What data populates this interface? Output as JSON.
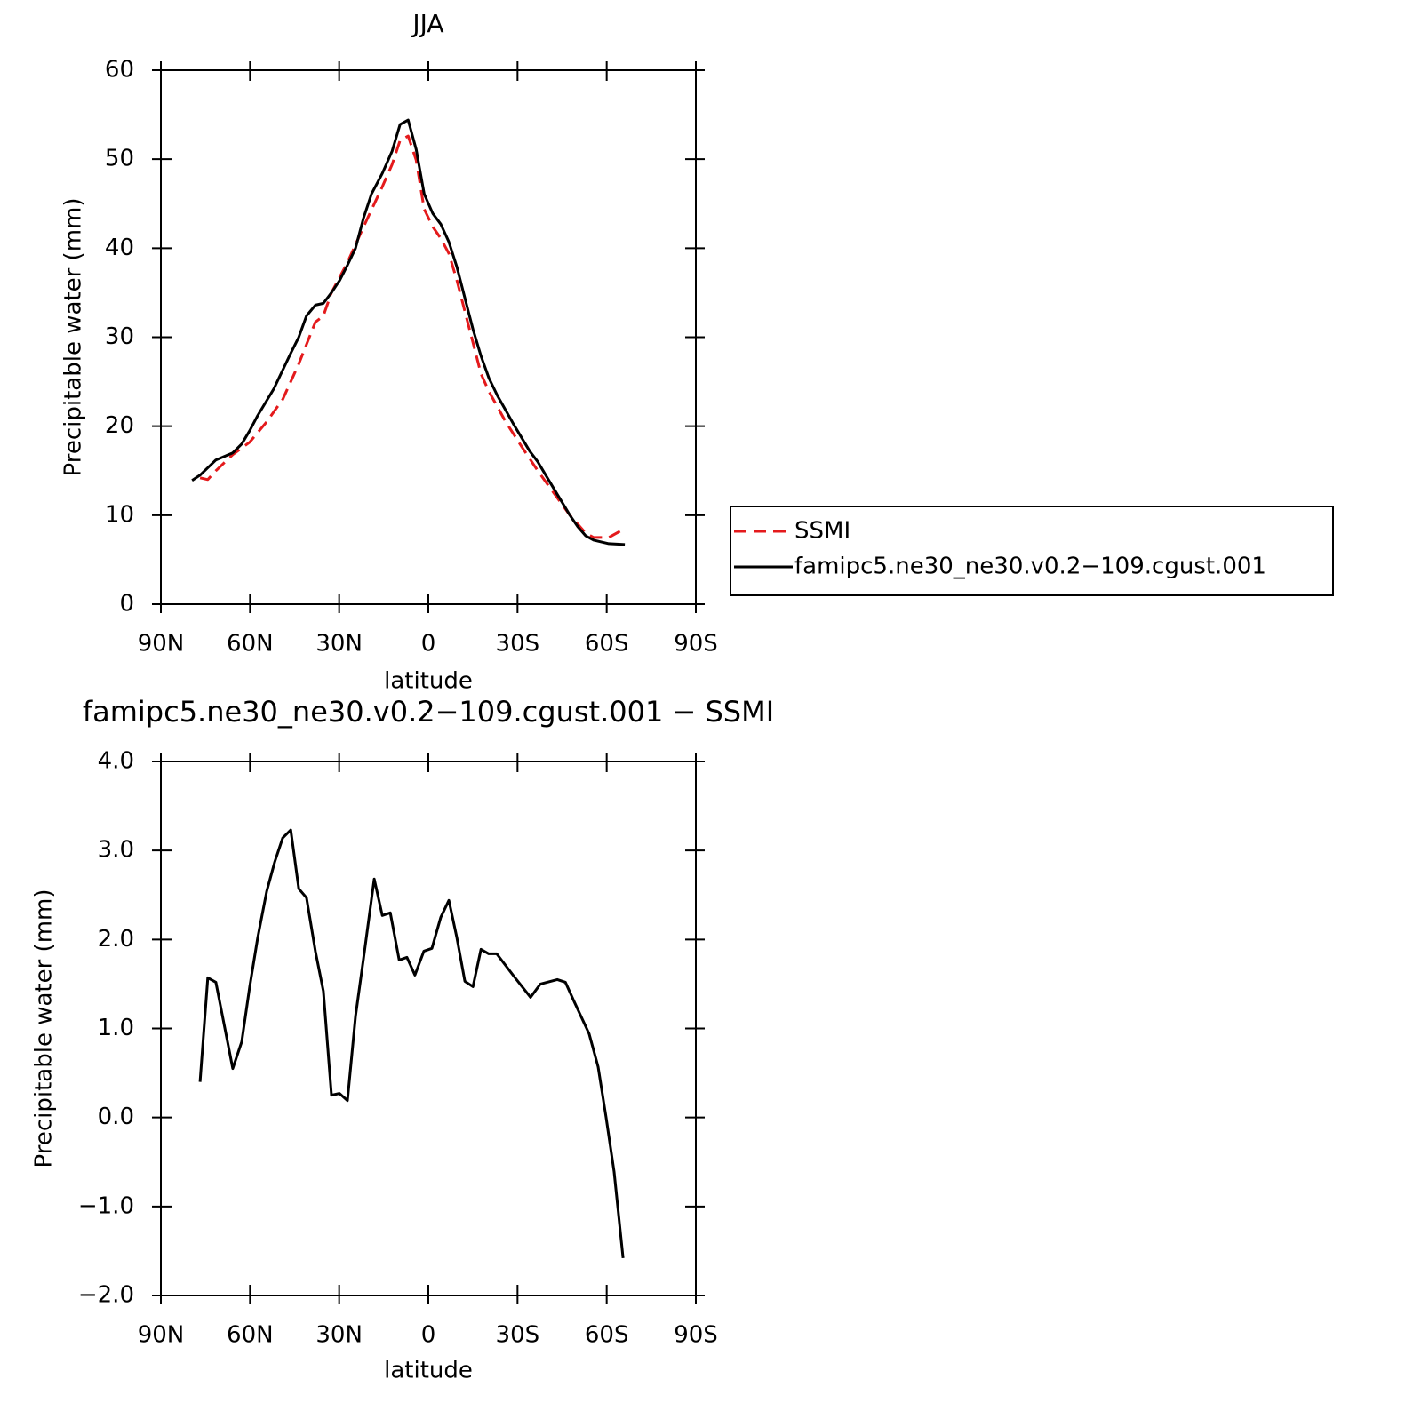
{
  "chart_data": [
    {
      "type": "line",
      "title": "JJA",
      "xlabel": "latitude",
      "ylabel": "Precipitable water (mm)",
      "xlim": [
        90,
        -90
      ],
      "xticks": [
        {
          "value": 90,
          "label": "90N"
        },
        {
          "value": 60,
          "label": "60N"
        },
        {
          "value": 30,
          "label": "30N"
        },
        0,
        {
          "value": -30,
          "label": "30S"
        },
        {
          "value": -60,
          "label": "60S"
        },
        {
          "value": -90,
          "label": "90S"
        }
      ],
      "ylim": [
        0,
        60
      ],
      "yticks": [
        0,
        10,
        20,
        30,
        40,
        50,
        60
      ],
      "legend": "outside-right",
      "series": [
        {
          "name": "SSMI",
          "color": "#e41a1c",
          "linestyle": "dashed",
          "x": [
            76.8,
            74.2,
            71.5,
            65.8,
            60.1,
            54.4,
            49.0,
            43.6,
            38.0,
            35.3,
            32.6,
            27.2,
            21.8,
            15.5,
            12.2,
            9.5,
            6.8,
            4.1,
            1.4,
            -1.5,
            -4.2,
            -6.9,
            -9.6,
            -12.3,
            -15.0,
            -17.7,
            -20.4,
            -26.0,
            -31.4,
            -36.8,
            -42.2,
            -47.6,
            -52.9,
            -55.6,
            -60.7,
            -66.1
          ],
          "values": [
            14.2,
            14.0,
            15.0,
            16.8,
            18.2,
            20.5,
            23.0,
            27.0,
            31.7,
            32.4,
            35.0,
            38.4,
            42.4,
            46.9,
            49.4,
            52.1,
            52.6,
            49.9,
            44.4,
            42.4,
            41.1,
            39.4,
            36.4,
            32.9,
            29.4,
            25.9,
            23.9,
            20.5,
            17.7,
            15.0,
            12.5,
            10.0,
            8.0,
            7.5,
            7.5,
            8.5
          ]
        },
        {
          "name": "famipc5.ne30_ne30.v0.2−109.cgust.001",
          "color": "#000000",
          "linestyle": "solid",
          "x": [
            79.5,
            76.8,
            71.5,
            65.8,
            62.8,
            60.1,
            57.4,
            52.0,
            46.3,
            43.6,
            41.0,
            38.0,
            35.3,
            32.6,
            29.8,
            27.2,
            24.5,
            21.8,
            19.1,
            15.5,
            12.2,
            9.5,
            6.8,
            4.1,
            1.4,
            -1.5,
            -4.2,
            -6.9,
            -9.6,
            -12.3,
            -15.0,
            -17.7,
            -20.4,
            -23.3,
            -26.0,
            -28.7,
            -31.4,
            -34.1,
            -36.8,
            -39.5,
            -42.2,
            -44.9,
            -47.6,
            -50.3,
            -52.9,
            -55.6,
            -60.7,
            -66.1
          ],
          "values": [
            13.9,
            14.5,
            16.2,
            17.0,
            18.0,
            19.5,
            21.2,
            24.2,
            28.2,
            30.0,
            32.4,
            33.6,
            33.8,
            35.0,
            36.4,
            38.1,
            40.0,
            43.4,
            46.1,
            48.4,
            50.9,
            53.9,
            54.4,
            51.1,
            46.1,
            43.9,
            42.7,
            40.7,
            37.9,
            34.4,
            30.9,
            27.9,
            25.4,
            23.4,
            21.8,
            20.2,
            18.7,
            17.2,
            16.0,
            14.5,
            13.0,
            11.5,
            10.0,
            8.7,
            7.7,
            7.2,
            6.8,
            6.7
          ]
        }
      ]
    },
    {
      "type": "line",
      "title": "famipc5.ne30_ne30.v0.2−109.cgust.001 − SSMI",
      "xlabel": "latitude",
      "ylabel": "Precipitable water (mm)",
      "xlim": [
        90,
        -90
      ],
      "xticks": [
        {
          "value": 90,
          "label": "90N"
        },
        {
          "value": 60,
          "label": "60N"
        },
        {
          "value": 30,
          "label": "30N"
        },
        0,
        {
          "value": -30,
          "label": "30S"
        },
        {
          "value": -60,
          "label": "60S"
        },
        {
          "value": -90,
          "label": "90S"
        }
      ],
      "ylim": [
        -2,
        4
      ],
      "yticks": [
        {
          "value": -2,
          "label": "−2.0"
        },
        {
          "value": -1,
          "label": "−1.0"
        },
        {
          "value": 0,
          "label": "0.0"
        },
        {
          "value": 1,
          "label": "1.0"
        },
        {
          "value": 2,
          "label": "2.0"
        },
        {
          "value": 3,
          "label": "3.0"
        },
        {
          "value": 4,
          "label": "4.0"
        }
      ],
      "color": "#000000",
      "x": [
        76.8,
        74.2,
        71.5,
        65.8,
        62.8,
        60.1,
        57.4,
        54.4,
        51.7,
        49.0,
        46.3,
        43.6,
        41.0,
        38.0,
        35.3,
        32.6,
        29.9,
        27.2,
        24.5,
        21.8,
        18.2,
        15.5,
        12.8,
        9.8,
        7.2,
        4.5,
        1.5,
        -1.2,
        -4.2,
        -6.9,
        -9.6,
        -12.3,
        -15.0,
        -17.7,
        -20.3,
        -23.0,
        -28.7,
        -34.4,
        -37.7,
        -43.4,
        -46.1,
        -48.8,
        -54.1,
        -57.1,
        -59.8,
        -62.5,
        -65.5
      ],
      "values": [
        0.4,
        1.57,
        1.52,
        0.55,
        0.85,
        1.47,
        2.02,
        2.54,
        2.87,
        3.14,
        3.23,
        2.57,
        2.47,
        1.87,
        1.42,
        0.25,
        0.27,
        0.19,
        1.14,
        1.79,
        2.68,
        2.27,
        2.3,
        1.77,
        1.8,
        1.6,
        1.87,
        1.9,
        2.25,
        2.44,
        2.02,
        1.53,
        1.47,
        1.89,
        1.84,
        1.84,
        1.59,
        1.35,
        1.5,
        1.55,
        1.52,
        1.32,
        0.94,
        0.57,
        0.0,
        -0.61,
        -1.58
      ]
    }
  ]
}
